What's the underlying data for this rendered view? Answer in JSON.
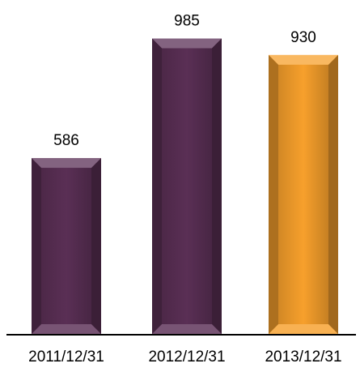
{
  "chart_data": {
    "type": "bar",
    "categories": [
      "2011/12/31",
      "2012/12/31",
      "2013/12/31"
    ],
    "values": [
      586,
      985,
      930
    ],
    "data_labels": [
      "586",
      "985",
      "930"
    ],
    "title": "",
    "xlabel": "",
    "ylabel": "",
    "ylim": [
      0,
      1000
    ],
    "grid": false,
    "legend": "none",
    "bar_colors": [
      "#5a2f55",
      "#5a2f55",
      "#f7a02c"
    ],
    "bar_style": "beveled"
  }
}
